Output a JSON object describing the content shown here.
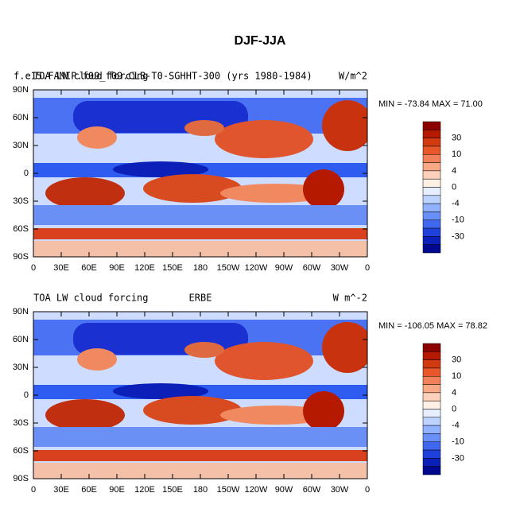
{
  "title": "DJF-JJA",
  "lat_labels": [
    "90N",
    "60N",
    "30N",
    "0",
    "30S",
    "60S",
    "90S"
  ],
  "lon_labels": [
    "0",
    "30E",
    "60E",
    "90E",
    "120E",
    "150E",
    "180",
    "150W",
    "120W",
    "90W",
    "60W",
    "30W",
    "0"
  ],
  "colorbar": {
    "labels": [
      "30",
      "10",
      "4",
      "0",
      "-4",
      "-10",
      "-30"
    ],
    "colors": [
      "#8b0000",
      "#b51a00",
      "#d23a10",
      "#e8572a",
      "#f2805a",
      "#f8a885",
      "#fcd0bb",
      "#fff0e6",
      "#e6eeff",
      "#bcd2ff",
      "#90b2ff",
      "#6890f8",
      "#4068ee",
      "#2040dc",
      "#0a20b8",
      "#000890"
    ]
  },
  "panels": [
    {
      "left_title": "TOA LW cloud forcing",
      "left_title_2": "f.e15.FAMIP.f09_f09.CLB-T0-SGHHT-300 (yrs 1980-1984)",
      "right_title": "W/m^2",
      "stats": "MIN = -73.84 MAX =  71.00"
    },
    {
      "left_title": "TOA LW cloud forcing",
      "center_title": "ERBE",
      "right_title": "W m^-2",
      "stats": "MIN = -106.05 MAX =  78.82"
    }
  ]
}
